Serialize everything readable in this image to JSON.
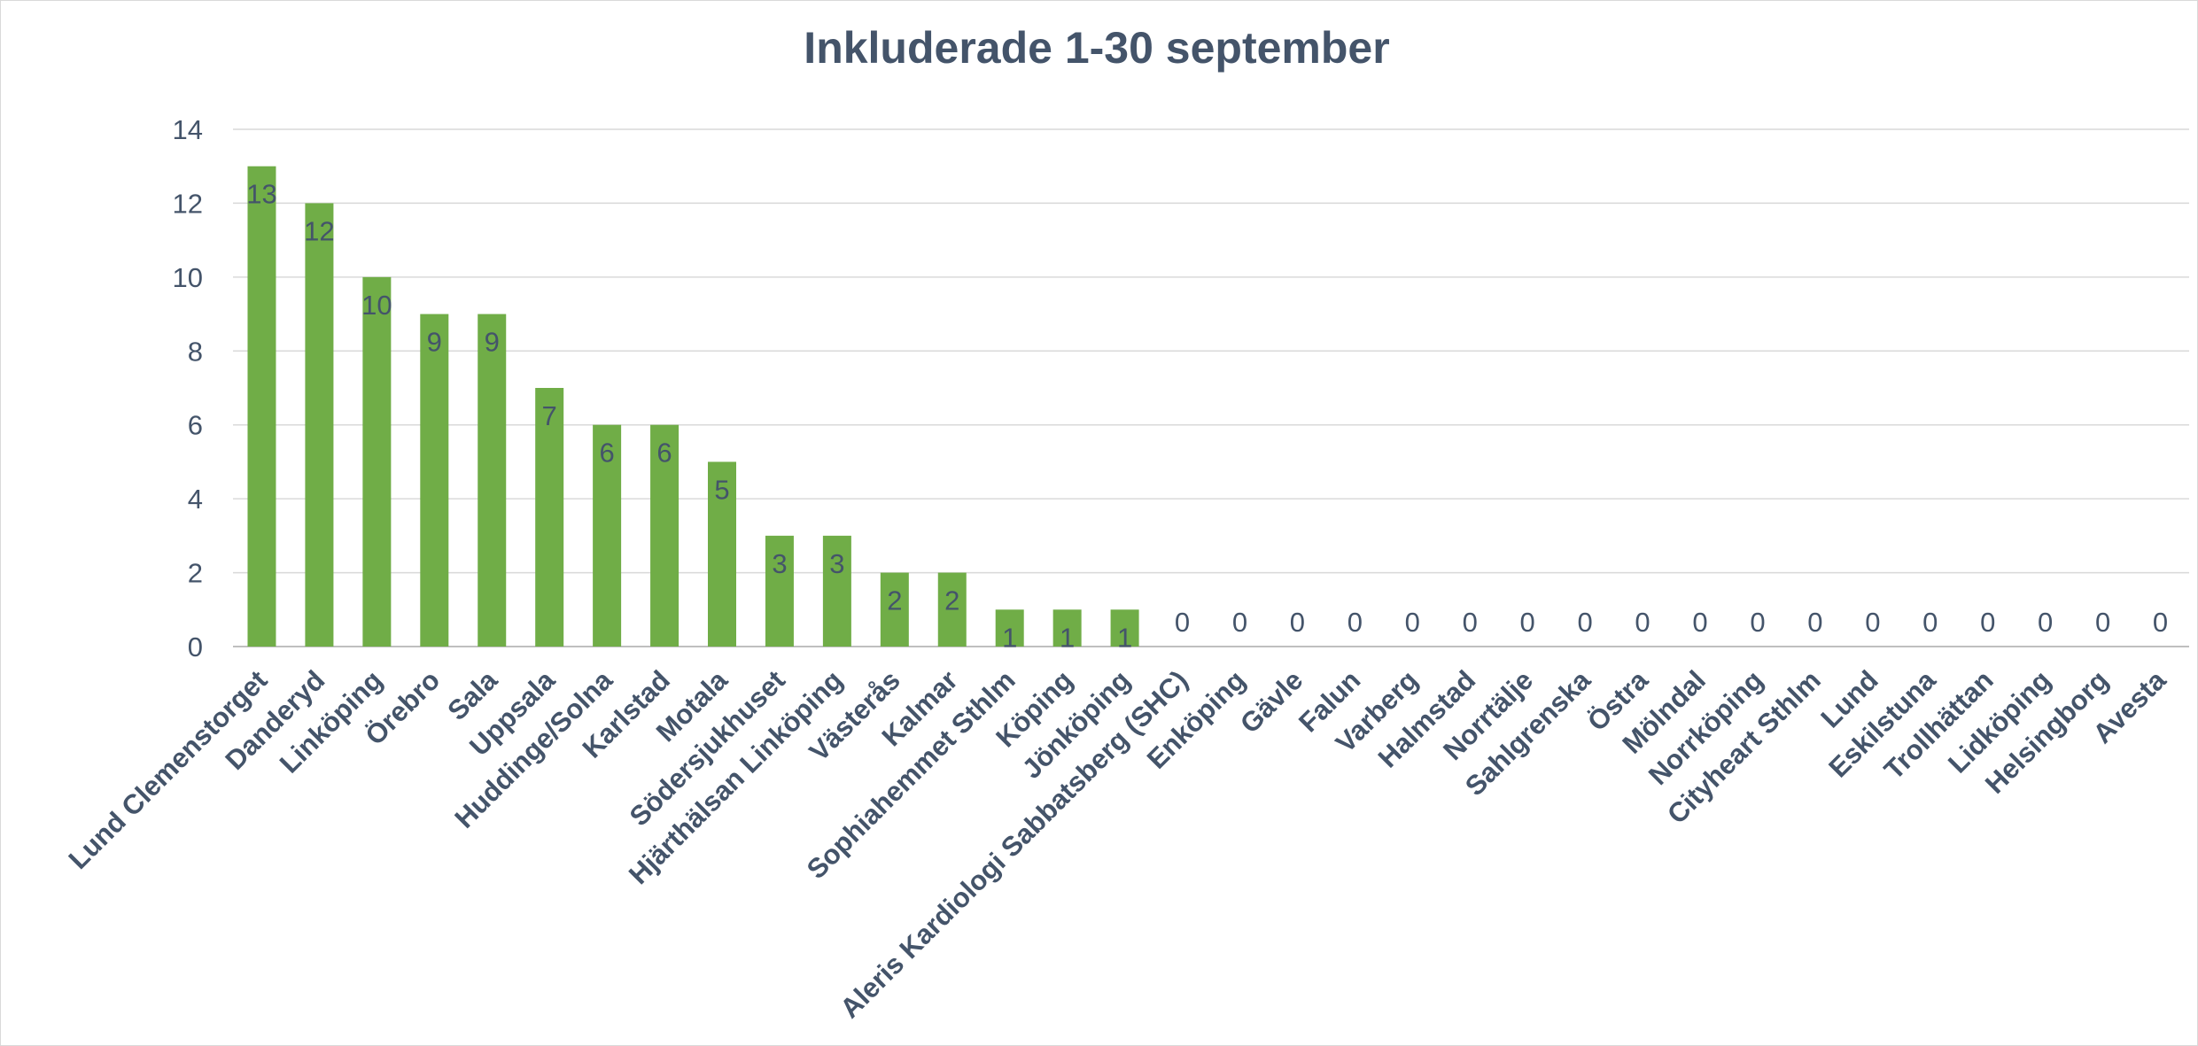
{
  "chart_data": {
    "type": "bar",
    "title": "Inkluderade 1-30  september",
    "xlabel": "",
    "ylabel": "",
    "ylim": [
      0,
      14
    ],
    "yticks": [
      0,
      2,
      4,
      6,
      8,
      10,
      12,
      14
    ],
    "grid": true,
    "legend": "none",
    "bar_color": "#70ad47",
    "text_color": "#44546a",
    "categories": [
      "Lund Clemenstorget",
      "Danderyd",
      "Linköping",
      "Örebro",
      "Sala",
      "Uppsala",
      "Huddinge/Solna",
      "Karlstad",
      "Motala",
      "Södersjukhuset",
      "Hjärthälsan Linköping",
      "Västerås",
      "Kalmar",
      "Sophiahemmet Sthlm",
      "Köping",
      "Jönköping",
      "Aleris Kardiologi Sabbatsberg (SHC)",
      "Enköping",
      "Gävle",
      "Falun",
      "Varberg",
      "Halmstad",
      "Norrtälje",
      "Sahlgrenska",
      "Östra",
      "Mölndal",
      "Norrköping",
      "Cityheart Sthlm",
      "Lund",
      "Eskilstuna",
      "Trollhättan",
      "Lidköping",
      "Helsingborg",
      "Avesta"
    ],
    "values": [
      13,
      12,
      10,
      9,
      9,
      7,
      6,
      6,
      5,
      3,
      3,
      2,
      2,
      1,
      1,
      1,
      0,
      0,
      0,
      0,
      0,
      0,
      0,
      0,
      0,
      0,
      0,
      0,
      0,
      0,
      0,
      0,
      0,
      0
    ]
  }
}
